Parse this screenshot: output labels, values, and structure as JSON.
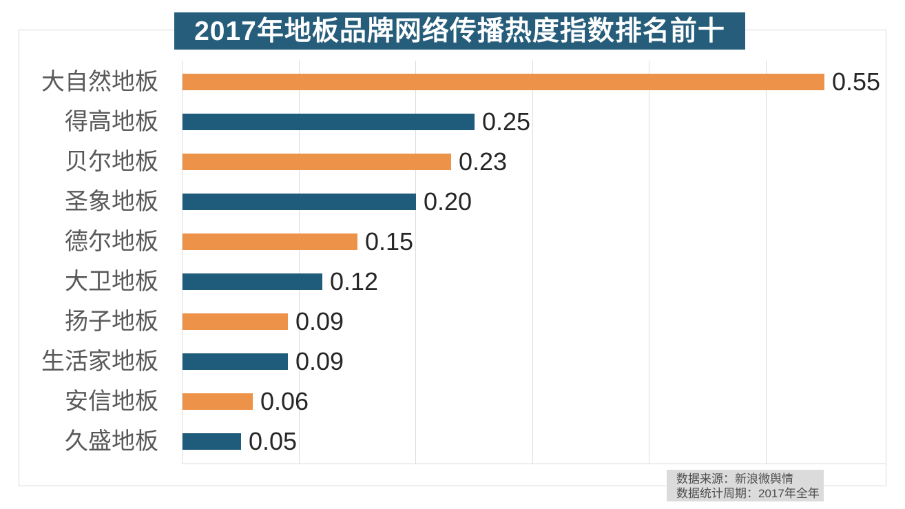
{
  "chart_data": {
    "type": "bar",
    "orientation": "horizontal",
    "title": "2017年地板品牌网络传播热度指数排名前十",
    "categories": [
      "大自然地板",
      "得高地板",
      "贝尔地板",
      "圣象地板",
      "德尔地板",
      "大卫地板",
      "扬子地板",
      "生活家地板",
      "安信地板",
      "久盛地板"
    ],
    "values": [
      0.55,
      0.25,
      0.23,
      0.2,
      0.15,
      0.12,
      0.09,
      0.09,
      0.06,
      0.05
    ],
    "data_labels": [
      "0.55",
      "0.25",
      "0.23",
      "0.20",
      "0.15",
      "0.12",
      "0.09",
      "0.09",
      "0.06",
      "0.05"
    ],
    "xlim": [
      0,
      0.6
    ],
    "gridline_interval": 0.1,
    "grid": "vertical-only",
    "legend": null,
    "bar_color_odd_rows": "#ed9249",
    "bar_color_even_rows": "#1f5b7b"
  },
  "footer": {
    "source": "数据来源：新浪微舆情",
    "period": "数据统计周期：2017年全年"
  },
  "colors": {
    "title_banner_bg": "#265d7b",
    "title_text": "#ffffff",
    "category_label": "#595959",
    "value_label": "#262626",
    "gridline": "#dcdcdc",
    "frame_border": "#d9d9d9",
    "footer_bg": "#dbdbdb",
    "footer_text": "#4d4d4d",
    "background": "#ffffff"
  }
}
